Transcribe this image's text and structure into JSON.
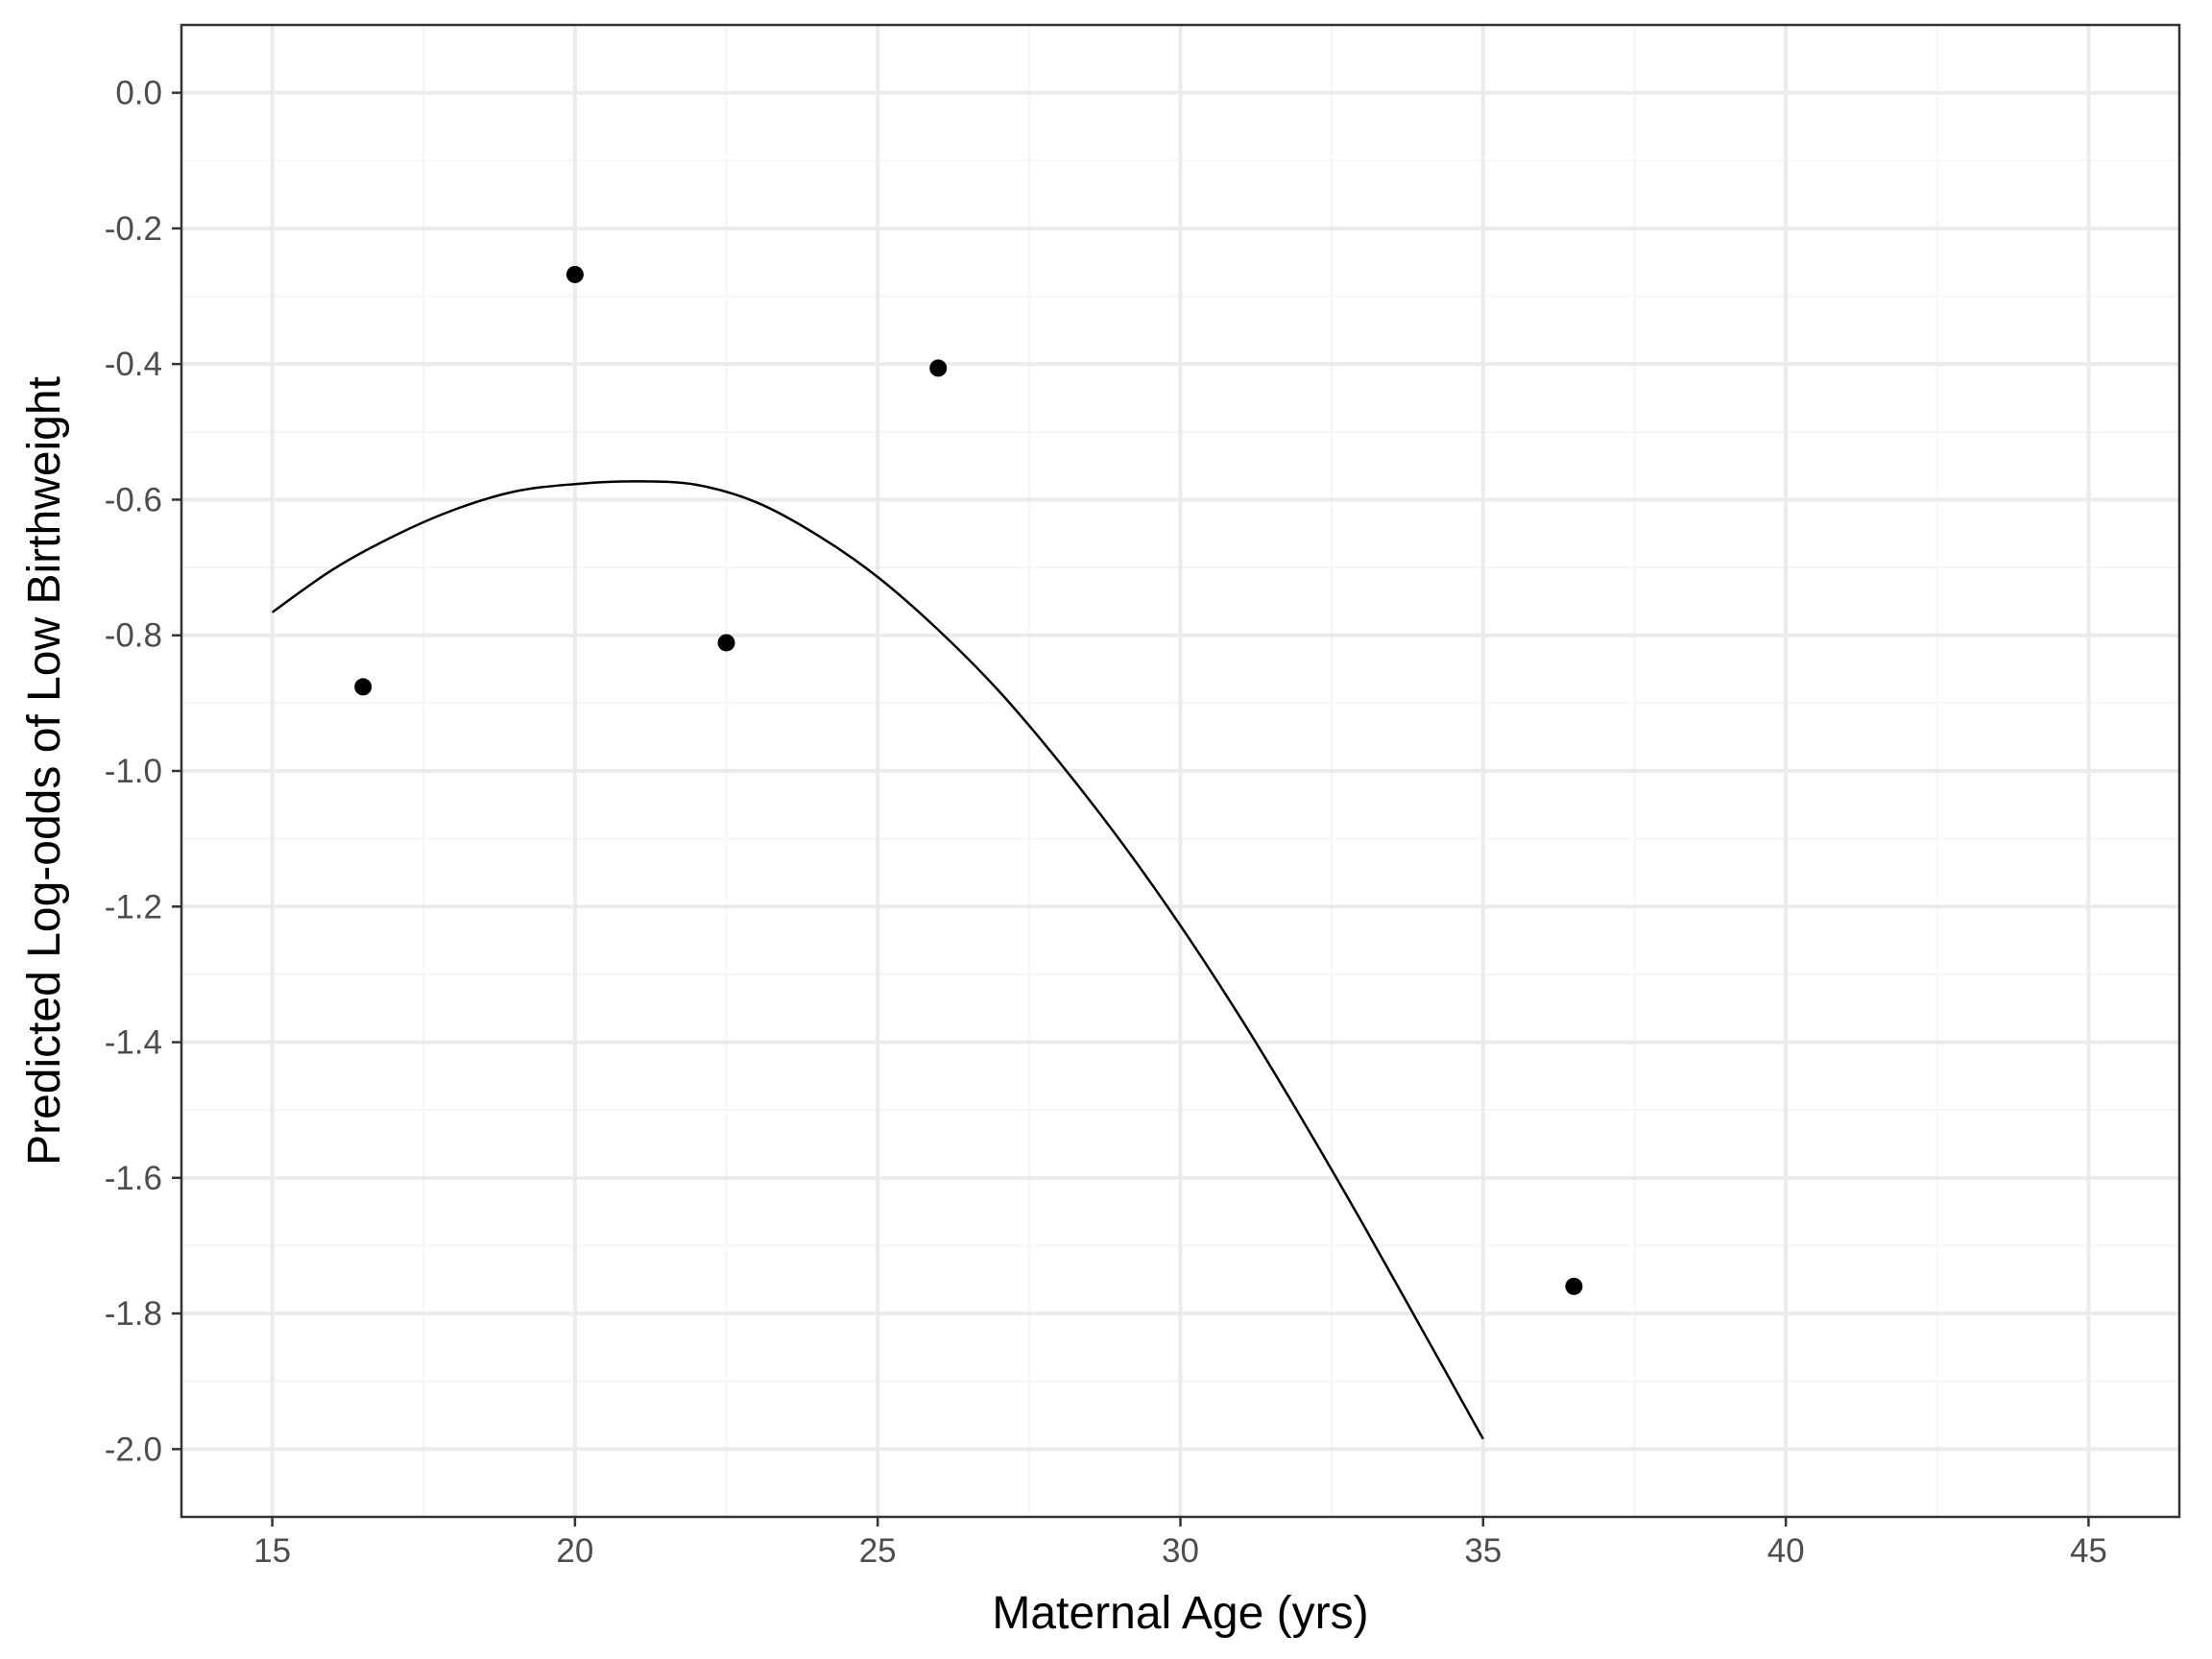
{
  "chart_data": {
    "type": "scatter",
    "title": "",
    "xlabel": "Maternal Age (yrs)",
    "ylabel": "Predicted Log-odds of Low Birthweight",
    "xlim": [
      13.5,
      46.5
    ],
    "ylim": [
      -2.1,
      0.1
    ],
    "x_ticks": [
      15,
      20,
      25,
      30,
      35,
      40,
      45
    ],
    "x_tick_labels": [
      "15",
      "20",
      "25",
      "30",
      "35",
      "40",
      "45"
    ],
    "x_minor_ticks": [
      17.5,
      22.5,
      27.5,
      32.5,
      37.5,
      42.5
    ],
    "y_ticks": [
      0.0,
      -0.2,
      -0.4,
      -0.6,
      -0.8,
      -1.0,
      -1.2,
      -1.4,
      -1.6,
      -1.8,
      -2.0
    ],
    "y_tick_labels": [
      "0.0",
      "-0.2",
      "-0.4",
      "-0.6",
      "-0.8",
      "-1.0",
      "-1.2",
      "-1.4",
      "-1.6",
      "-1.8",
      "-2.0"
    ],
    "y_minor_ticks": [
      -0.1,
      -0.3,
      -0.5,
      -0.7,
      -0.9,
      -1.1,
      -1.3,
      -1.5,
      -1.7,
      -1.9
    ],
    "grid": true,
    "legend": "none",
    "points": {
      "x": [
        16.5,
        20.0,
        22.5,
        26.0,
        36.5
      ],
      "y": [
        -0.876,
        -0.268,
        -0.811,
        -0.406,
        -1.76
      ]
    },
    "curve": {
      "type": "line",
      "x": [
        15,
        16,
        17,
        18,
        19,
        20,
        21,
        22,
        23,
        24,
        25,
        26,
        27,
        28,
        29,
        30,
        31,
        32,
        33,
        34,
        35
      ],
      "y": [
        -0.766,
        -0.703,
        -0.654,
        -0.615,
        -0.588,
        -0.577,
        -0.573,
        -0.578,
        -0.604,
        -0.652,
        -0.714,
        -0.792,
        -0.882,
        -0.987,
        -1.102,
        -1.228,
        -1.365,
        -1.512,
        -1.666,
        -1.825,
        -1.985
      ]
    },
    "colors": {
      "background": "#ffffff",
      "panel_border": "#333333",
      "grid_major": "#ebebeb",
      "grid_minor": "#f5f5f5",
      "tick_mark": "#333333",
      "tick_label": "#4d4d4d",
      "points": "#000000",
      "curve": "#000000"
    }
  }
}
